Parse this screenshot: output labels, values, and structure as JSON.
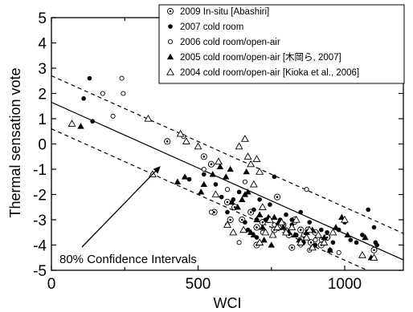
{
  "chart_data": {
    "type": "scatter",
    "title": "",
    "xlabel": "WCI",
    "ylabel": "Thermal sensation vote",
    "xlim": [
      0,
      1200
    ],
    "ylim": [
      -5,
      5
    ],
    "xticks": [
      "0",
      "500",
      "1000"
    ],
    "xtick_values": [
      0,
      500,
      1000
    ],
    "xticks_minor": [
      250,
      750
    ],
    "yticks": [
      "5",
      "4",
      "3",
      "2",
      "1",
      "0",
      "-1",
      "-2",
      "-3",
      "-4",
      "-5"
    ],
    "ytick_values": [
      5,
      4,
      3,
      2,
      1,
      0,
      -1,
      -2,
      -3,
      -4,
      -5
    ],
    "grid": false,
    "legend_position": "top-right",
    "series": [
      {
        "name": "2009 In-situ [Abashiri]",
        "marker": "bullseye",
        "color": "#000000",
        "points": [
          [
            395,
            0.1
          ],
          [
            520,
            -0.5
          ],
          [
            545,
            -0.8
          ],
          [
            555,
            -2.7
          ],
          [
            600,
            -2.3
          ],
          [
            625,
            -2.5
          ],
          [
            650,
            -3.0
          ],
          [
            680,
            -2.7
          ],
          [
            700,
            -3.3
          ],
          [
            720,
            -3.1
          ],
          [
            740,
            -3.0
          ],
          [
            760,
            -3.4
          ],
          [
            770,
            -2.1
          ],
          [
            790,
            -3.2
          ],
          [
            810,
            -3.6
          ],
          [
            830,
            -3.0
          ],
          [
            850,
            -3.4
          ],
          [
            860,
            -3.7
          ],
          [
            875,
            -3.4
          ],
          [
            885,
            -3.9
          ],
          [
            900,
            -3.5
          ],
          [
            920,
            -4.0
          ],
          [
            940,
            -3.7
          ],
          [
            610,
            -3.0
          ],
          [
            700,
            -4.0
          ],
          [
            820,
            -4.1
          ],
          [
            1100,
            -4.2
          ]
        ]
      },
      {
        "name": "2007 cold room",
        "marker": "filled-circle",
        "color": "#000000",
        "points": [
          [
            110,
            1.8
          ],
          [
            130,
            2.6
          ],
          [
            140,
            0.9
          ],
          [
            470,
            -1.4
          ],
          [
            520,
            -1.2
          ],
          [
            560,
            -1.6
          ],
          [
            580,
            -2.1
          ],
          [
            600,
            -2.7
          ],
          [
            620,
            -2.2
          ],
          [
            640,
            -1.9
          ],
          [
            660,
            -3.1
          ],
          [
            670,
            -3.4
          ],
          [
            690,
            -2.6
          ],
          [
            710,
            -2.2
          ],
          [
            730,
            -3.0
          ],
          [
            745,
            -2.4
          ],
          [
            760,
            -3.2
          ],
          [
            780,
            -3.0
          ],
          [
            800,
            -2.8
          ],
          [
            820,
            -3.2
          ],
          [
            835,
            -3.6
          ],
          [
            850,
            -2.7
          ],
          [
            860,
            -3.9
          ],
          [
            880,
            -3.1
          ],
          [
            900,
            -4.0
          ],
          [
            920,
            -3.4
          ],
          [
            940,
            -3.5
          ],
          [
            960,
            -3.9
          ],
          [
            980,
            -3.4
          ],
          [
            1000,
            -3.1
          ],
          [
            1020,
            -3.8
          ],
          [
            1040,
            -3.9
          ],
          [
            1060,
            -3.6
          ],
          [
            1080,
            -2.6
          ],
          [
            1100,
            -3.3
          ],
          [
            1105,
            -3.9
          ],
          [
            1110,
            -4.0
          ],
          [
            700,
            -3.7
          ],
          [
            760,
            -1.3
          ],
          [
            820,
            -3.0
          ]
        ]
      },
      {
        "name": "2006 cold room/open-air",
        "marker": "open-circle",
        "color": "#000000",
        "points": [
          [
            175,
            2.0
          ],
          [
            210,
            1.1
          ],
          [
            240,
            2.6
          ],
          [
            245,
            2.0
          ],
          [
            450,
            0.3
          ],
          [
            520,
            -1.0
          ],
          [
            545,
            -2.7
          ],
          [
            600,
            -3.2
          ],
          [
            660,
            -1.5
          ],
          [
            700,
            -3.0
          ],
          [
            720,
            -3.5
          ],
          [
            760,
            -3.2
          ],
          [
            800,
            -3.4
          ],
          [
            830,
            -3.1
          ],
          [
            850,
            -4.0
          ],
          [
            860,
            -3.6
          ],
          [
            870,
            -1.8
          ],
          [
            880,
            -4.2
          ],
          [
            890,
            -4.1
          ],
          [
            900,
            -3.8
          ],
          [
            920,
            -3.8
          ],
          [
            950,
            -4.2
          ],
          [
            980,
            -4.3
          ],
          [
            640,
            -3.9
          ],
          [
            600,
            -1.8
          ]
        ]
      },
      {
        "name": "2005 cold room/open-air  [木岡ら,  2007]",
        "marker": "filled-triangle",
        "color": "#000000",
        "points": [
          [
            100,
            0.7
          ],
          [
            430,
            -1.5
          ],
          [
            455,
            -1.3
          ],
          [
            510,
            -1.9
          ],
          [
            520,
            -1.6
          ],
          [
            550,
            -1.2
          ],
          [
            575,
            -0.9
          ],
          [
            595,
            -1.3
          ],
          [
            610,
            -1.0
          ],
          [
            615,
            -2.3
          ],
          [
            635,
            -2.5
          ],
          [
            650,
            -2.2
          ],
          [
            660,
            -2.0
          ],
          [
            665,
            -1.1
          ],
          [
            670,
            -1.9
          ],
          [
            680,
            -3.5
          ],
          [
            700,
            -3.0
          ],
          [
            710,
            -2.8
          ],
          [
            720,
            -3.3
          ],
          [
            740,
            -2.9
          ],
          [
            750,
            -4.0
          ],
          [
            760,
            -2.9
          ],
          [
            775,
            -3.1
          ],
          [
            790,
            -3.3
          ],
          [
            810,
            -3.5
          ],
          [
            830,
            -3.6
          ],
          [
            845,
            -3.8
          ],
          [
            870,
            -3.5
          ],
          [
            890,
            -3.4
          ],
          [
            910,
            -3.6
          ],
          [
            930,
            -3.7
          ],
          [
            950,
            -4.2
          ],
          [
            970,
            -3.3
          ],
          [
            990,
            -2.9
          ],
          [
            1010,
            -3.6
          ],
          [
            1070,
            -3.7
          ],
          [
            1090,
            -4.5
          ],
          [
            690,
            -3.6
          ],
          [
            725,
            -3.8
          ]
        ]
      },
      {
        "name": "2004 cold room/open-air [Kioka et al., 2006]",
        "marker": "open-triangle",
        "color": "#000000",
        "points": [
          [
            70,
            0.8
          ],
          [
            330,
            1.0
          ],
          [
            345,
            -1.2
          ],
          [
            440,
            0.4
          ],
          [
            460,
            0.1
          ],
          [
            500,
            -0.1
          ],
          [
            560,
            -2.0
          ],
          [
            570,
            -0.7
          ],
          [
            600,
            -3.2
          ],
          [
            620,
            -3.5
          ],
          [
            640,
            -0.1
          ],
          [
            660,
            0.2
          ],
          [
            670,
            -0.5
          ],
          [
            680,
            -0.8
          ],
          [
            690,
            -1.6
          ],
          [
            700,
            -0.6
          ],
          [
            710,
            -1.1
          ],
          [
            720,
            -2.5
          ],
          [
            730,
            -3.5
          ],
          [
            745,
            -3.0
          ],
          [
            755,
            -3.6
          ],
          [
            770,
            -3.3
          ],
          [
            785,
            -3.1
          ],
          [
            800,
            -3.5
          ],
          [
            820,
            -3.3
          ],
          [
            835,
            -3.0
          ],
          [
            850,
            -3.9
          ],
          [
            870,
            -3.7
          ],
          [
            890,
            -4.1
          ],
          [
            910,
            -3.6
          ],
          [
            930,
            -3.9
          ],
          [
            960,
            -3.5
          ],
          [
            1000,
            -3.0
          ],
          [
            1060,
            -4.4
          ],
          [
            1100,
            -4.5
          ],
          [
            655,
            -3.4
          ],
          [
            710,
            -3.9
          ],
          [
            880,
            -3.4
          ]
        ]
      }
    ],
    "regression_line": {
      "slope": -0.0052,
      "intercept": 1.65
    },
    "confidence_band_offset": 1.05,
    "annotation": {
      "text": "80% Confidence Intervals",
      "arrow_target": [
        370,
        -0.9
      ]
    }
  }
}
